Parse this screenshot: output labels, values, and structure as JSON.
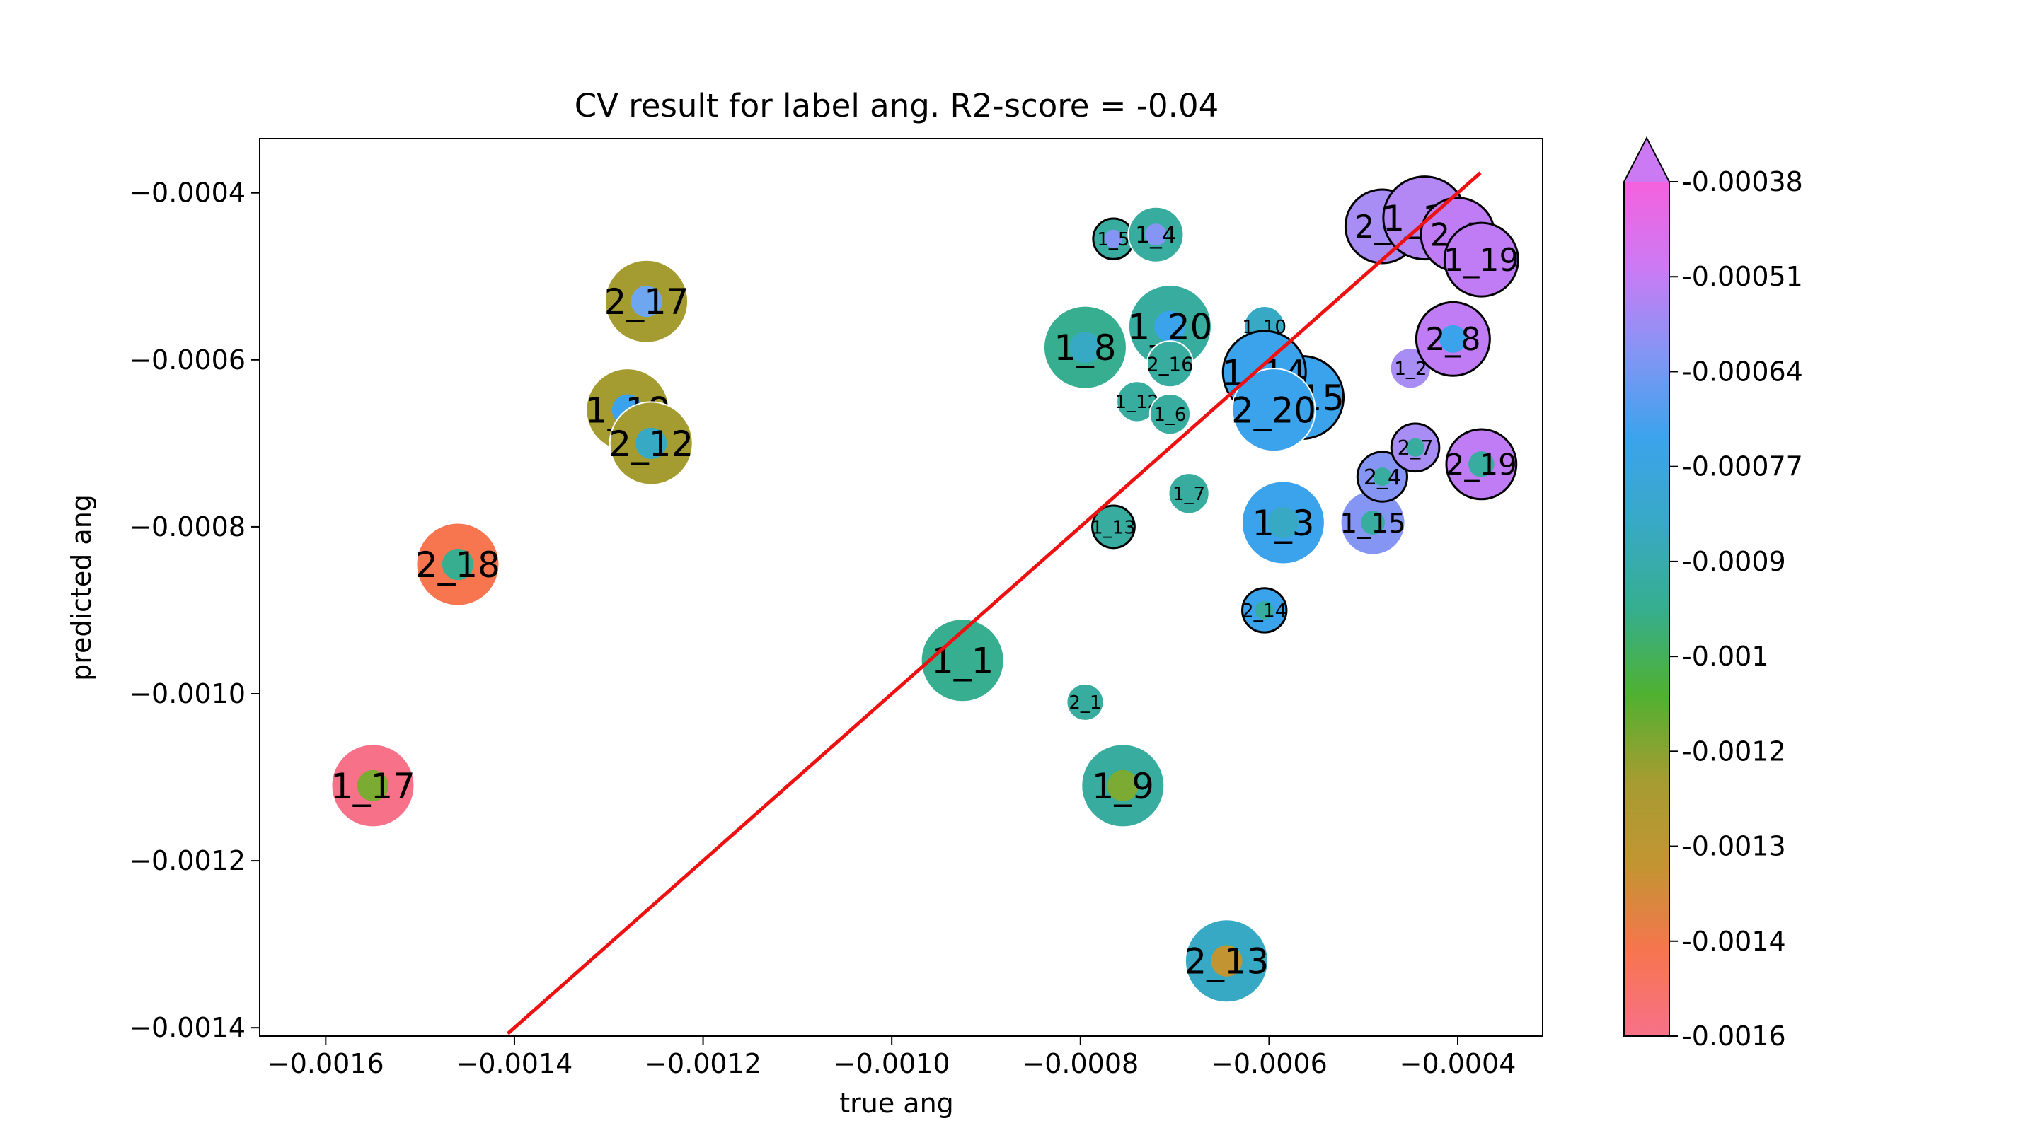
{
  "chart_data": {
    "type": "scatter",
    "title": "CV result for label ang. R2-score = -0.04",
    "xlabel": "true ang",
    "ylabel": "predicted ang",
    "xlim": [
      -0.00167,
      -0.00031
    ],
    "ylim": [
      -0.00141,
      -0.000335
    ],
    "xticks": [
      -0.0016,
      -0.0014,
      -0.0012,
      -0.001,
      -0.0008,
      -0.0006,
      -0.0004
    ],
    "xtick_labels": [
      "−0.0016",
      "−0.0014",
      "−0.0012",
      "−0.0010",
      "−0.0008",
      "−0.0006",
      "−0.0004"
    ],
    "yticks": [
      -0.0004,
      -0.0006,
      -0.0008,
      -0.001,
      -0.0012,
      -0.0014
    ],
    "ytick_labels": [
      "−0.0004",
      "−0.0006",
      "−0.0008",
      "−0.0010",
      "−0.0012",
      "−0.0014"
    ],
    "diagonal_line": {
      "color": "#ee1111",
      "x": [
        -0.001407,
        -0.000376
      ],
      "y": [
        -0.001407,
        -0.000376
      ]
    },
    "colorbar": {
      "ticks": [
        -0.00038,
        -0.00051,
        -0.00064,
        -0.00077,
        -0.0009,
        -0.001,
        -0.0012,
        -0.0013,
        -0.0014,
        -0.0016
      ],
      "tick_labels": [
        "-0.00038",
        "-0.00051",
        "-0.00064",
        "-0.00077",
        "-0.0009",
        "-0.001",
        "-0.0012",
        "-0.0013",
        "-0.0014",
        "-0.0016"
      ],
      "colors": [
        "#f77189",
        "#f7754f",
        "#c39532",
        "#a59c31",
        "#50b131",
        "#36ae8f",
        "#38a9c5",
        "#3ba3ec",
        "#8495f4",
        "#cc7af4",
        "#f561dd"
      ],
      "extend": "max"
    },
    "points": [
      {
        "label": "1_17",
        "x": -0.00155,
        "y": -0.00111,
        "r": 0.45,
        "ring": "#f77189",
        "inner": "#7bab32",
        "ir": 0.17
      },
      {
        "label": "2_18",
        "x": -0.00146,
        "y": -0.000845,
        "r": 0.45,
        "ring": "#f7754f",
        "inner": "#36ae8f",
        "ir": 0.17
      },
      {
        "label": "2_17",
        "x": -0.00126,
        "y": -0.00053,
        "r": 0.45,
        "ring": "#a59c31",
        "inner": "#6ea6f0",
        "ir": 0.17
      },
      {
        "label": "1_18",
        "x": -0.00128,
        "y": -0.00066,
        "r": 0.45,
        "ring": "#a59c31",
        "inner": "#3ba3ec",
        "ir": 0.17
      },
      {
        "label": "2_12",
        "x": -0.001255,
        "y": -0.0007,
        "r": 0.45,
        "ring": "#a59c31",
        "inner": "#38a9c5",
        "ir": 0.17
      },
      {
        "label": "1_1",
        "x": -0.000925,
        "y": -0.00096,
        "r": 0.45,
        "ring": "#36ae8f",
        "inner": "#36ae8f",
        "ir": 0.0
      },
      {
        "label": "2_1",
        "x": -0.000795,
        "y": -0.00101,
        "r": 0.2,
        "ring": "#37ac9f",
        "inner": "#37ac9f",
        "ir": 0.0
      },
      {
        "label": "1_9",
        "x": -0.000755,
        "y": -0.00111,
        "r": 0.45,
        "ring": "#37ac9f",
        "inner": "#7bab32",
        "ir": 0.17
      },
      {
        "label": "2_13",
        "x": -0.000645,
        "y": -0.00132,
        "r": 0.45,
        "ring": "#38a9c5",
        "inner": "#c39532",
        "ir": 0.17
      },
      {
        "label": "1_8",
        "x": -0.000795,
        "y": -0.000585,
        "r": 0.45,
        "ring": "#36ae8f",
        "inner": "#38a9c5",
        "ir": 0.17
      },
      {
        "label": "1_20",
        "x": -0.000705,
        "y": -0.00056,
        "r": 0.45,
        "ring": "#37ac9f",
        "inner": "#3ba3ec",
        "ir": 0.17
      },
      {
        "label": "1_5",
        "x": -0.000765,
        "y": -0.000455,
        "r": 0.22,
        "ring": "#37ac9f",
        "inner": "#8495f4",
        "ir": 0.1,
        "black": true
      },
      {
        "label": "1_4",
        "x": -0.00072,
        "y": -0.00045,
        "r": 0.3,
        "ring": "#37ac9f",
        "inner": "#8495f4",
        "ir": 0.12
      },
      {
        "label": "1_12",
        "x": -0.00074,
        "y": -0.00065,
        "r": 0.22,
        "ring": "#37ac9f",
        "inner": "#37ac9f",
        "ir": 0.0
      },
      {
        "label": "1_6",
        "x": -0.000705,
        "y": -0.000665,
        "r": 0.22,
        "ring": "#37ac9f",
        "inner": "#37ac9f",
        "ir": 0.0
      },
      {
        "label": "2_16",
        "x": -0.000705,
        "y": -0.000605,
        "r": 0.25,
        "ring": "#37ac9f",
        "inner": "#37ac9f",
        "ir": 0.0
      },
      {
        "label": "1_10",
        "x": -0.000605,
        "y": -0.00056,
        "r": 0.22,
        "ring": "#38a9c5",
        "inner": "#38a9c5",
        "ir": 0.0
      },
      {
        "label": "1_7",
        "x": -0.000685,
        "y": -0.00076,
        "r": 0.22,
        "ring": "#37ac9f",
        "inner": "#37ac9f",
        "ir": 0.0
      },
      {
        "label": "1_13",
        "x": -0.000765,
        "y": -0.0008,
        "r": 0.23,
        "ring": "#37ac9f",
        "inner": "#37ac9f",
        "ir": 0.0,
        "black": true
      },
      {
        "label": "2_15",
        "x": -0.000565,
        "y": -0.000645,
        "r": 0.45,
        "ring": "#3ba3ec",
        "inner": "#3ba3ec",
        "ir": 0.0,
        "black": true
      },
      {
        "label": "1_14",
        "x": -0.000605,
        "y": -0.000615,
        "r": 0.45,
        "ring": "#3ba3ec",
        "inner": "#3ba3ec",
        "ir": 0.0,
        "black": true
      },
      {
        "label": "2_20",
        "x": -0.000595,
        "y": -0.00066,
        "r": 0.45,
        "ring": "#3ba3ec",
        "inner": "#3ba3ec",
        "ir": 0.0
      },
      {
        "label": "1_3",
        "x": -0.000585,
        "y": -0.000795,
        "r": 0.45,
        "ring": "#3ba3ec",
        "inner": "#38a9c5",
        "ir": 0.17
      },
      {
        "label": "2_14",
        "x": -0.000605,
        "y": -0.0009,
        "r": 0.24,
        "ring": "#3ba3ec",
        "inner": "#37ac9f",
        "ir": 0.1,
        "black": true
      },
      {
        "label": "1_15",
        "x": -0.00049,
        "y": -0.000795,
        "r": 0.35,
        "ring": "#8495f4",
        "inner": "#37ac9f",
        "ir": 0.13
      },
      {
        "label": "1_2",
        "x": -0.00045,
        "y": -0.00061,
        "r": 0.22,
        "ring": "#a88ef4",
        "inner": "#8495f4",
        "ir": 0.0
      },
      {
        "label": "2_4",
        "x": -0.00048,
        "y": -0.00074,
        "r": 0.27,
        "ring": "#8495f4",
        "inner": "#37ac9f",
        "ir": 0.1,
        "black": true
      },
      {
        "label": "2_7",
        "x": -0.000445,
        "y": -0.000705,
        "r": 0.26,
        "ring": "#a88ef4",
        "inner": "#37ac9f",
        "ir": 0.1,
        "black": true
      },
      {
        "label": "2_19",
        "x": -0.000375,
        "y": -0.000725,
        "r": 0.38,
        "ring": "#c07cf4",
        "inner": "#37ac9f",
        "ir": 0.14,
        "black": true
      },
      {
        "label": "2_8",
        "x": -0.000405,
        "y": -0.000575,
        "r": 0.4,
        "ring": "#c07cf4",
        "inner": "#3ba3ec",
        "ir": 0.15,
        "black": true
      },
      {
        "label": "2_3",
        "x": -0.00048,
        "y": -0.00044,
        "r": 0.4,
        "ring": "#a88ef4",
        "inner": "#a88ef4",
        "ir": 0.0,
        "black": true
      },
      {
        "label": "1_16",
        "x": -0.000435,
        "y": -0.00043,
        "r": 0.45,
        "ring": "#b387f4",
        "inner": "#b387f4",
        "ir": 0.0,
        "black": true
      },
      {
        "label": "2_5",
        "x": -0.0004,
        "y": -0.00045,
        "r": 0.4,
        "ring": "#c07cf4",
        "inner": "#c07cf4",
        "ir": 0.0,
        "black": true
      },
      {
        "label": "1_19",
        "x": -0.000375,
        "y": -0.00048,
        "r": 0.4,
        "ring": "#c07cf4",
        "inner": "#c07cf4",
        "ir": 0.0,
        "black": true
      }
    ]
  }
}
